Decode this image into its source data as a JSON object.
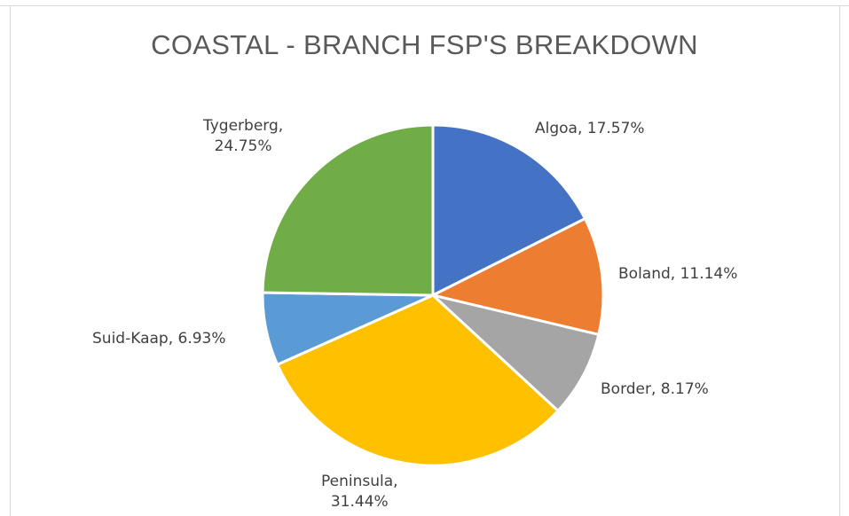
{
  "chart_data": {
    "type": "pie",
    "title": "COASTAL - BRANCH FSP'S BREAKDOWN",
    "slices": [
      {
        "name": "Algoa",
        "value": 17.57,
        "label": "Algoa, 17.57%",
        "color": "#4472C4"
      },
      {
        "name": "Boland",
        "value": 11.14,
        "label": "Boland, 11.14%",
        "color": "#ED7D31"
      },
      {
        "name": "Border",
        "value": 8.17,
        "label": "Border, 8.17%",
        "color": "#A5A5A5"
      },
      {
        "name": "Peninsula",
        "value": 31.44,
        "label_line1": "Peninsula,",
        "label_line2": "31.44%",
        "color": "#FFC000"
      },
      {
        "name": "Suid-Kaap",
        "value": 6.93,
        "label": "Suid-Kaap, 6.93%",
        "color": "#5B9BD5"
      },
      {
        "name": "Tygerberg",
        "value": 24.75,
        "label_line1": "Tygerberg,",
        "label_line2": "24.75%",
        "color": "#70AD47"
      }
    ],
    "start_angle_deg": 0,
    "direction": "clockwise",
    "legend": "none",
    "data_labels": "outside"
  }
}
